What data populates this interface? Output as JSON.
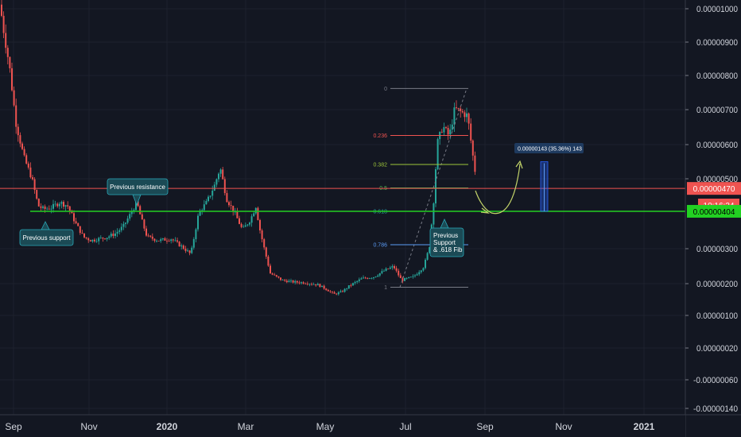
{
  "chart_data": {
    "type": "candlestick",
    "theme": {
      "background": "#131722",
      "grid": "#1e222d",
      "up": "#26a69a",
      "down": "#ef5350",
      "axis_text": "#d1d4dc"
    },
    "x_ticks": [
      {
        "label": "Sep",
        "major": false
      },
      {
        "label": "Nov",
        "major": false
      },
      {
        "label": "2020",
        "major": true
      },
      {
        "label": "Mar",
        "major": false
      },
      {
        "label": "May",
        "major": false
      },
      {
        "label": "Jul",
        "major": false
      },
      {
        "label": "Sep",
        "major": false
      },
      {
        "label": "Nov",
        "major": false
      },
      {
        "label": "2021",
        "major": true
      }
    ],
    "y_ticks": [
      {
        "label": "0.00001000"
      },
      {
        "label": "0.00000900"
      },
      {
        "label": "0.00000800"
      },
      {
        "label": "0.00000700"
      },
      {
        "label": "0.00000600"
      },
      {
        "label": "0.00000500"
      },
      {
        "label": "0.00000300"
      },
      {
        "label": "0.00000200"
      },
      {
        "label": "0.00000100"
      },
      {
        "label": "0.00000020"
      },
      {
        "label": "-0.00000060"
      },
      {
        "label": "-0.00000140"
      }
    ],
    "price_path": [
      [
        0,
        1000
      ],
      [
        5,
        920
      ],
      [
        12,
        820
      ],
      [
        20,
        660
      ],
      [
        30,
        560
      ],
      [
        40,
        500
      ],
      [
        48,
        420
      ],
      [
        55,
        410
      ],
      [
        65,
        415
      ],
      [
        75,
        430
      ],
      [
        85,
        420
      ],
      [
        95,
        370
      ],
      [
        105,
        330
      ],
      [
        115,
        320
      ],
      [
        125,
        325
      ],
      [
        135,
        330
      ],
      [
        145,
        340
      ],
      [
        155,
        360
      ],
      [
        165,
        400
      ],
      [
        172,
        430
      ],
      [
        178,
        380
      ],
      [
        185,
        330
      ],
      [
        200,
        320
      ],
      [
        215,
        325
      ],
      [
        230,
        300
      ],
      [
        240,
        280
      ],
      [
        250,
        400
      ],
      [
        260,
        430
      ],
      [
        270,
        480
      ],
      [
        277,
        530
      ],
      [
        285,
        440
      ],
      [
        295,
        400
      ],
      [
        305,
        350
      ],
      [
        315,
        380
      ],
      [
        322,
        420
      ],
      [
        326,
        360
      ],
      [
        332,
        300
      ],
      [
        340,
        225
      ],
      [
        355,
        205
      ],
      [
        370,
        200
      ],
      [
        385,
        198
      ],
      [
        400,
        192
      ],
      [
        410,
        180
      ],
      [
        420,
        165
      ],
      [
        430,
        172
      ],
      [
        440,
        190
      ],
      [
        455,
        210
      ],
      [
        470,
        215
      ],
      [
        485,
        235
      ],
      [
        495,
        245
      ],
      [
        505,
        205
      ],
      [
        520,
        215
      ],
      [
        533,
        245
      ],
      [
        540,
        300
      ],
      [
        545,
        420
      ],
      [
        550,
        600
      ],
      [
        557,
        650
      ],
      [
        565,
        620
      ],
      [
        572,
        700
      ],
      [
        580,
        690
      ],
      [
        588,
        680
      ],
      [
        595,
        560
      ],
      [
        600,
        480
      ]
    ],
    "horizontal_levels": [
      {
        "name": "resistance-line",
        "price": 470,
        "color": "#ef5350"
      },
      {
        "name": "support-line",
        "price": 404,
        "color": "#22c322"
      }
    ],
    "fib_retracement": {
      "x_start": 483,
      "x_end": 589,
      "high": 758,
      "low": 185,
      "levels": [
        {
          "label": "0",
          "ratio": 0,
          "color": "#787b86"
        },
        {
          "label": "0.236",
          "ratio": 0.236,
          "color": "#ef5350"
        },
        {
          "label": "0.382",
          "ratio": 0.382,
          "color": "#9cc43a"
        },
        {
          "label": "0.5",
          "ratio": 0.5,
          "color": "#4caf50"
        },
        {
          "label": "0.618",
          "ratio": 0.618,
          "color": "#26a69a"
        },
        {
          "label": "0.786",
          "ratio": 0.786,
          "color": "#5b9cf6"
        },
        {
          "label": "1",
          "ratio": 1,
          "color": "#787b86"
        }
      ]
    },
    "annotations": [
      {
        "name": "previous-support-callout",
        "text": [
          "Previous support"
        ]
      },
      {
        "name": "previous-resistance-callout",
        "text": [
          "Previous resistance"
        ]
      },
      {
        "name": "previous-support-fib-callout",
        "text": [
          "Previous",
          "Support",
          "& .618 Fib"
        ]
      }
    ],
    "measure": {
      "label": "0.00000143 (35.36%) 143",
      "from_price": 404,
      "to_price": 547
    },
    "price_tags": [
      {
        "name": "current-price-tag",
        "label": "0.00000470",
        "price": 470,
        "color": "#ef5350",
        "text_color": "#ffffff"
      },
      {
        "name": "countdown-tag",
        "label": "10:16:34",
        "price": 447,
        "color": "#ef5350",
        "text_color": "#ffffff"
      },
      {
        "name": "support-price-tag",
        "label": "0.00000404",
        "price": 404,
        "color": "#22d122",
        "text_color": "#000000"
      }
    ]
  }
}
